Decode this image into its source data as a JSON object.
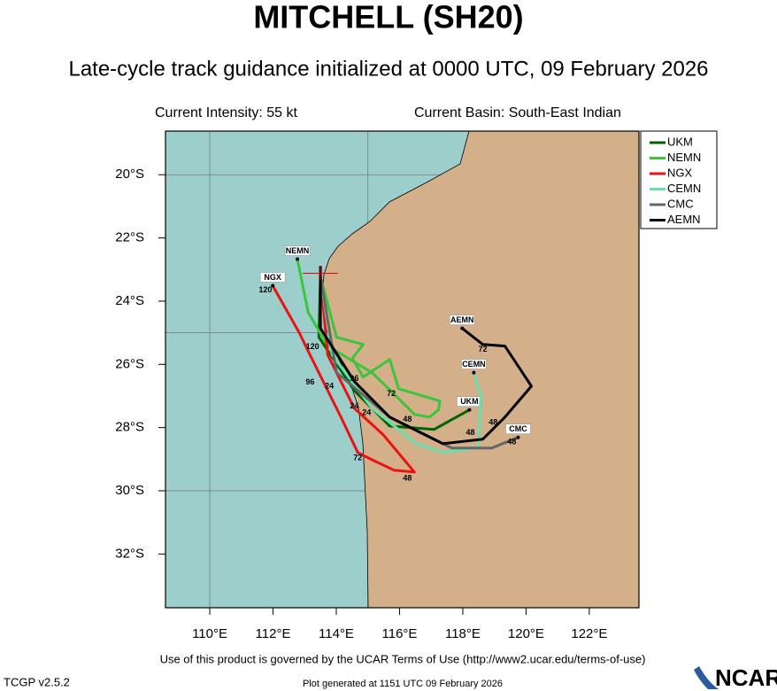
{
  "chart_data": {
    "type": "track_map",
    "title": "MITCHELL (SH20)",
    "subtitle": "Late-cycle track guidance initialized at 0000 UTC, 09 February 2026",
    "current_intensity": "Current Intensity: 55 kt",
    "current_basin": "Current Basin: South-East Indian",
    "terms": "Use of this product is governed by the UCAR Terms of Use (http://www2.ucar.edu/terms-of-use)",
    "version": "TCGP v2.5.2",
    "generated": "Plot generated at 1151 UTC   09 February 2026",
    "logo": "NCAR",
    "xlim": [
      108.6,
      123.57
    ],
    "ylim": [
      -33.7,
      -18.62
    ],
    "xticks": [
      {
        "value": 110,
        "label": "110°E"
      },
      {
        "value": 112,
        "label": "112°E"
      },
      {
        "value": 114,
        "label": "114°E"
      },
      {
        "value": 116,
        "label": "116°E"
      },
      {
        "value": 118,
        "label": "118°E"
      },
      {
        "value": 120,
        "label": "120°E"
      },
      {
        "value": 122,
        "label": "122°E"
      }
    ],
    "yticks": [
      {
        "value": -20,
        "label": "20°S"
      },
      {
        "value": -22,
        "label": "22°S"
      },
      {
        "value": -24,
        "label": "24°S"
      },
      {
        "value": -26,
        "label": "26°S"
      },
      {
        "value": -28,
        "label": "28°S"
      },
      {
        "value": -30,
        "label": "30°S"
      },
      {
        "value": -32,
        "label": "32°S"
      }
    ],
    "grid_lon": [
      110,
      115,
      120
    ],
    "grid_lat": [
      -20,
      -25,
      -30
    ],
    "current_position": {
      "lon": 113.5,
      "lat": -23.12
    },
    "series": [
      {
        "name": "UKM",
        "color": "#006400",
        "lon": [
          113.5,
          113.45,
          114.57,
          115.69,
          117.09,
          118.21
        ],
        "lat": [
          -23.23,
          -25.14,
          -26.83,
          -27.95,
          -28.06,
          -27.44
        ]
      },
      {
        "name": "NEMN",
        "color": "#3cc43c",
        "lon": [
          113.5,
          114.01,
          114.85,
          114.51,
          114.85,
          115.69,
          115.97,
          117.28,
          117.23,
          116.95,
          116.47,
          115.91,
          115.13,
          113.73,
          113.11,
          112.77
        ],
        "lat": [
          -23.23,
          -25.14,
          -25.37,
          -25.81,
          -26.4,
          -25.84,
          -26.77,
          -27.16,
          -27.44,
          -27.67,
          -27.58,
          -27.02,
          -26.26,
          -25.42,
          -24.35,
          -22.67
        ]
      },
      {
        "name": "NGX",
        "color": "#ee1111",
        "lon": [
          113.5,
          113.73,
          114.57,
          115.49,
          116.47,
          115.83,
          115.13,
          114.68,
          114.15,
          113.17,
          112.83,
          111.99
        ],
        "lat": [
          -23.17,
          -25.7,
          -27.39,
          -28.23,
          -29.41,
          -29.35,
          -29.02,
          -28.79,
          -27.67,
          -25.7,
          -25.0,
          -23.51
        ]
      },
      {
        "name": "CEMN",
        "color": "#66e0b0",
        "lon": [
          113.5,
          113.87,
          115.13,
          116.53,
          117.37,
          118.49,
          118.57,
          118.35
        ],
        "lat": [
          -23.23,
          -25.7,
          -27.39,
          -28.51,
          -28.79,
          -28.65,
          -26.97,
          -26.26
        ]
      },
      {
        "name": "CMC",
        "color": "#666666",
        "lon": [
          113.5,
          114.01,
          115.69,
          117.65,
          118.91,
          119.75
        ],
        "lat": [
          -23.23,
          -26.26,
          -27.67,
          -28.65,
          -28.65,
          -28.31
        ]
      },
      {
        "name": "AEMN",
        "color": "#000000",
        "lon": [
          113.5,
          113.5,
          114.57,
          115.69,
          116.81,
          117.37,
          118.63,
          119.33,
          120.17,
          119.33,
          118.63,
          117.98
        ],
        "lat": [
          -22.89,
          -24.86,
          -26.54,
          -27.67,
          -28.23,
          -28.51,
          -28.37,
          -27.67,
          -26.69,
          -25.42,
          -25.37,
          -24.86
        ]
      }
    ],
    "hour_labels": [
      {
        "text": "120",
        "lon": 111.76,
        "lat": -23.65
      },
      {
        "text": "120",
        "lon": 113.25,
        "lat": -25.45
      },
      {
        "text": "96",
        "lon": 113.17,
        "lat": -26.57
      },
      {
        "text": "24",
        "lon": 113.78,
        "lat": -26.69
      },
      {
        "text": "96",
        "lon": 114.57,
        "lat": -26.46
      },
      {
        "text": "72",
        "lon": 115.74,
        "lat": -26.94
      },
      {
        "text": "24",
        "lon": 114.57,
        "lat": -27.33
      },
      {
        "text": "24",
        "lon": 114.96,
        "lat": -27.53
      },
      {
        "text": "48",
        "lon": 116.25,
        "lat": -27.75
      },
      {
        "text": "48",
        "lon": 118.24,
        "lat": -28.17
      },
      {
        "text": "72",
        "lon": 118.63,
        "lat": -25.53
      },
      {
        "text": "48",
        "lon": 118.96,
        "lat": -27.84
      },
      {
        "text": "48",
        "lon": 119.55,
        "lat": -28.46
      },
      {
        "text": "72",
        "lon": 114.68,
        "lat": -28.96
      },
      {
        "text": "48",
        "lon": 116.25,
        "lat": -29.61
      }
    ]
  }
}
